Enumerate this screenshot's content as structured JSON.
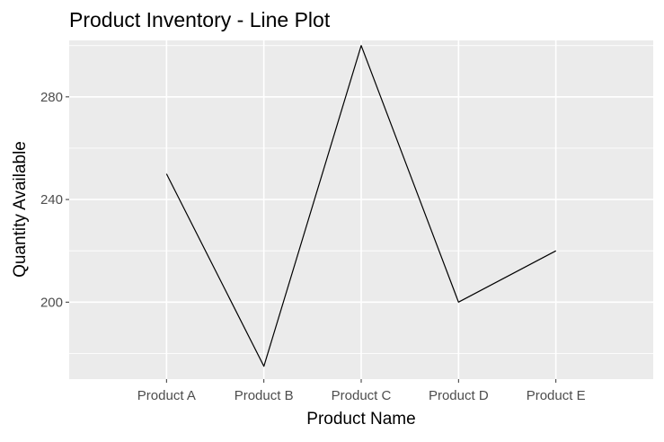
{
  "chart_data": {
    "type": "line",
    "title": "Product Inventory - Line Plot",
    "xlabel": "Product Name",
    "ylabel": "Quantity Available",
    "categories": [
      "Product A",
      "Product B",
      "Product C",
      "Product D",
      "Product E"
    ],
    "series": [
      {
        "values": [
          250,
          175,
          300,
          200,
          220
        ]
      }
    ],
    "ylim": [
      170,
      302
    ],
    "yticks": [
      200,
      240,
      280
    ],
    "grid": true,
    "legend": "none",
    "colors": {
      "panel_background": "#ebebeb",
      "grid_major": "#ffffff",
      "line": "#000000",
      "tick_text": "#4d4d4d",
      "tick_mark": "#333333"
    }
  }
}
